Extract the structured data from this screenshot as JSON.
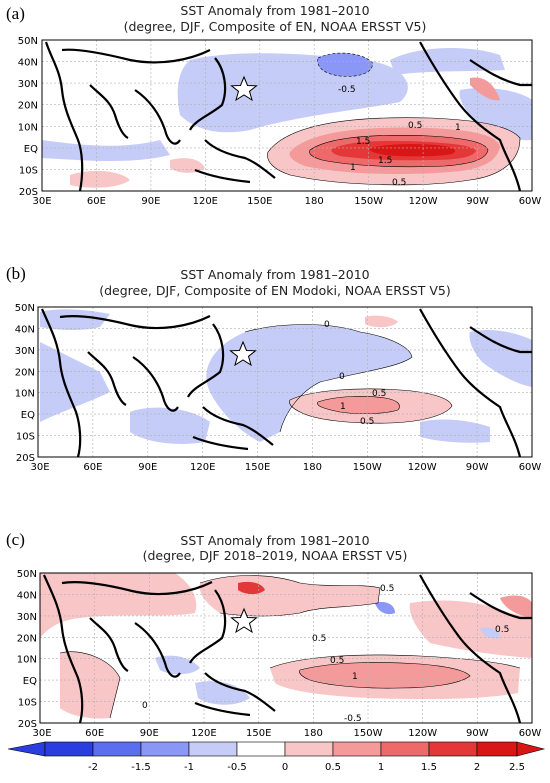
{
  "colors": {
    "neg_2": "#2a3ee0",
    "neg_1_5": "#5c6ef0",
    "neg_1": "#8a97f4",
    "neg_0_5": "#c6ccf8",
    "pos_0_5": "#f8c6c6",
    "pos_1": "#f49a9a",
    "pos_1_5": "#ee6a6a",
    "pos_2": "#e43838",
    "pos_2_5": "#d81616",
    "land": "#000000",
    "grid": "#b0b0b0"
  },
  "axes": {
    "lat_labels": [
      "50N",
      "40N",
      "30N",
      "20N",
      "10N",
      "EQ",
      "10S",
      "20S"
    ],
    "lon_labels": [
      "30E",
      "60E",
      "90E",
      "120E",
      "150E",
      "180",
      "150W",
      "120W",
      "90W",
      "60W"
    ]
  },
  "marker": {
    "name": "star-icon",
    "lon": 146,
    "lat": 28
  },
  "panels": [
    {
      "letter": "(a)",
      "title_line1": "SST Anomaly from 1981–2010",
      "title_line2": "(degree, DJF, Composite of EN, NOAA ERSST V5)",
      "contour_labels": [
        "-0.5",
        "0.5",
        "1.5",
        "1",
        "1.5",
        "1",
        "0.5"
      ]
    },
    {
      "letter": "(b)",
      "title_line1": "SST Anomaly from 1981–2010",
      "title_line2": "(degree, DJF, Composite of EN Modoki, NOAA ERSST V5)",
      "contour_labels": [
        "0",
        "0",
        "0.5",
        "1",
        "0.5"
      ]
    },
    {
      "letter": "(c)",
      "title_line1": "SST Anomaly from 1981–2010",
      "title_line2": "(degree, DJF 2018–2019, NOAA ERSST V5)",
      "contour_labels": [
        "0.5",
        "0.5",
        "0.5",
        "0.5",
        "1",
        "-0.5",
        "0"
      ]
    }
  ],
  "colorbar": {
    "ticks": [
      "-2",
      "-1.5",
      "-1",
      "-0.5",
      "0",
      "0.5",
      "1",
      "1.5",
      "2",
      "2.5"
    ]
  }
}
